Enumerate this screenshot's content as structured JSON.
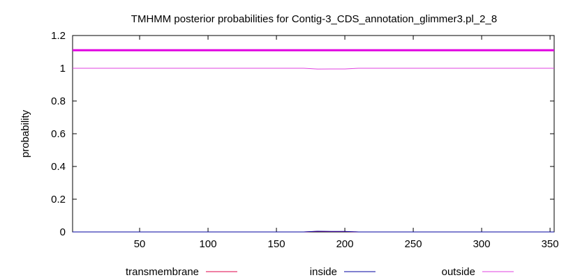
{
  "chart_data": {
    "type": "line",
    "title": "TMHMM posterior probabilities for Contig-3_CDS_annotation_glimmer3.pl_2_8",
    "xlabel": "",
    "ylabel": "probability",
    "xlim": [
      1,
      353
    ],
    "ylim": [
      0,
      1.2
    ],
    "x_ticks": [
      50,
      100,
      150,
      200,
      250,
      300,
      350
    ],
    "y_ticks": [
      0,
      0.2,
      0.4,
      0.6,
      0.8,
      1,
      1.2
    ],
    "y_tick_labels": [
      "0",
      "0.2",
      "0.4",
      "0.6",
      "0.8",
      "1",
      "1.2"
    ],
    "grid": false,
    "legend_position": "bottom",
    "series": [
      {
        "name": "transmembrane",
        "color": "#e0004a",
        "x": [
          1,
          170,
          180,
          190,
          200,
          210,
          353
        ],
        "y": [
          0,
          0,
          0.003,
          0.002,
          0.002,
          0,
          0
        ]
      },
      {
        "name": "inside",
        "color": "#0000a0",
        "x": [
          1,
          170,
          180,
          190,
          200,
          210,
          353
        ],
        "y": [
          0,
          0,
          0.004,
          0.003,
          0.003,
          0,
          0
        ]
      },
      {
        "name": "outside",
        "color": "#e040e0",
        "x": [
          1,
          170,
          180,
          190,
          200,
          210,
          353
        ],
        "y": [
          1,
          1,
          0.995,
          0.996,
          0.996,
          1,
          1
        ]
      }
    ],
    "annotations": [
      {
        "type": "hline",
        "y": 1.11,
        "color": "#e000e0",
        "width": 3
      }
    ]
  }
}
